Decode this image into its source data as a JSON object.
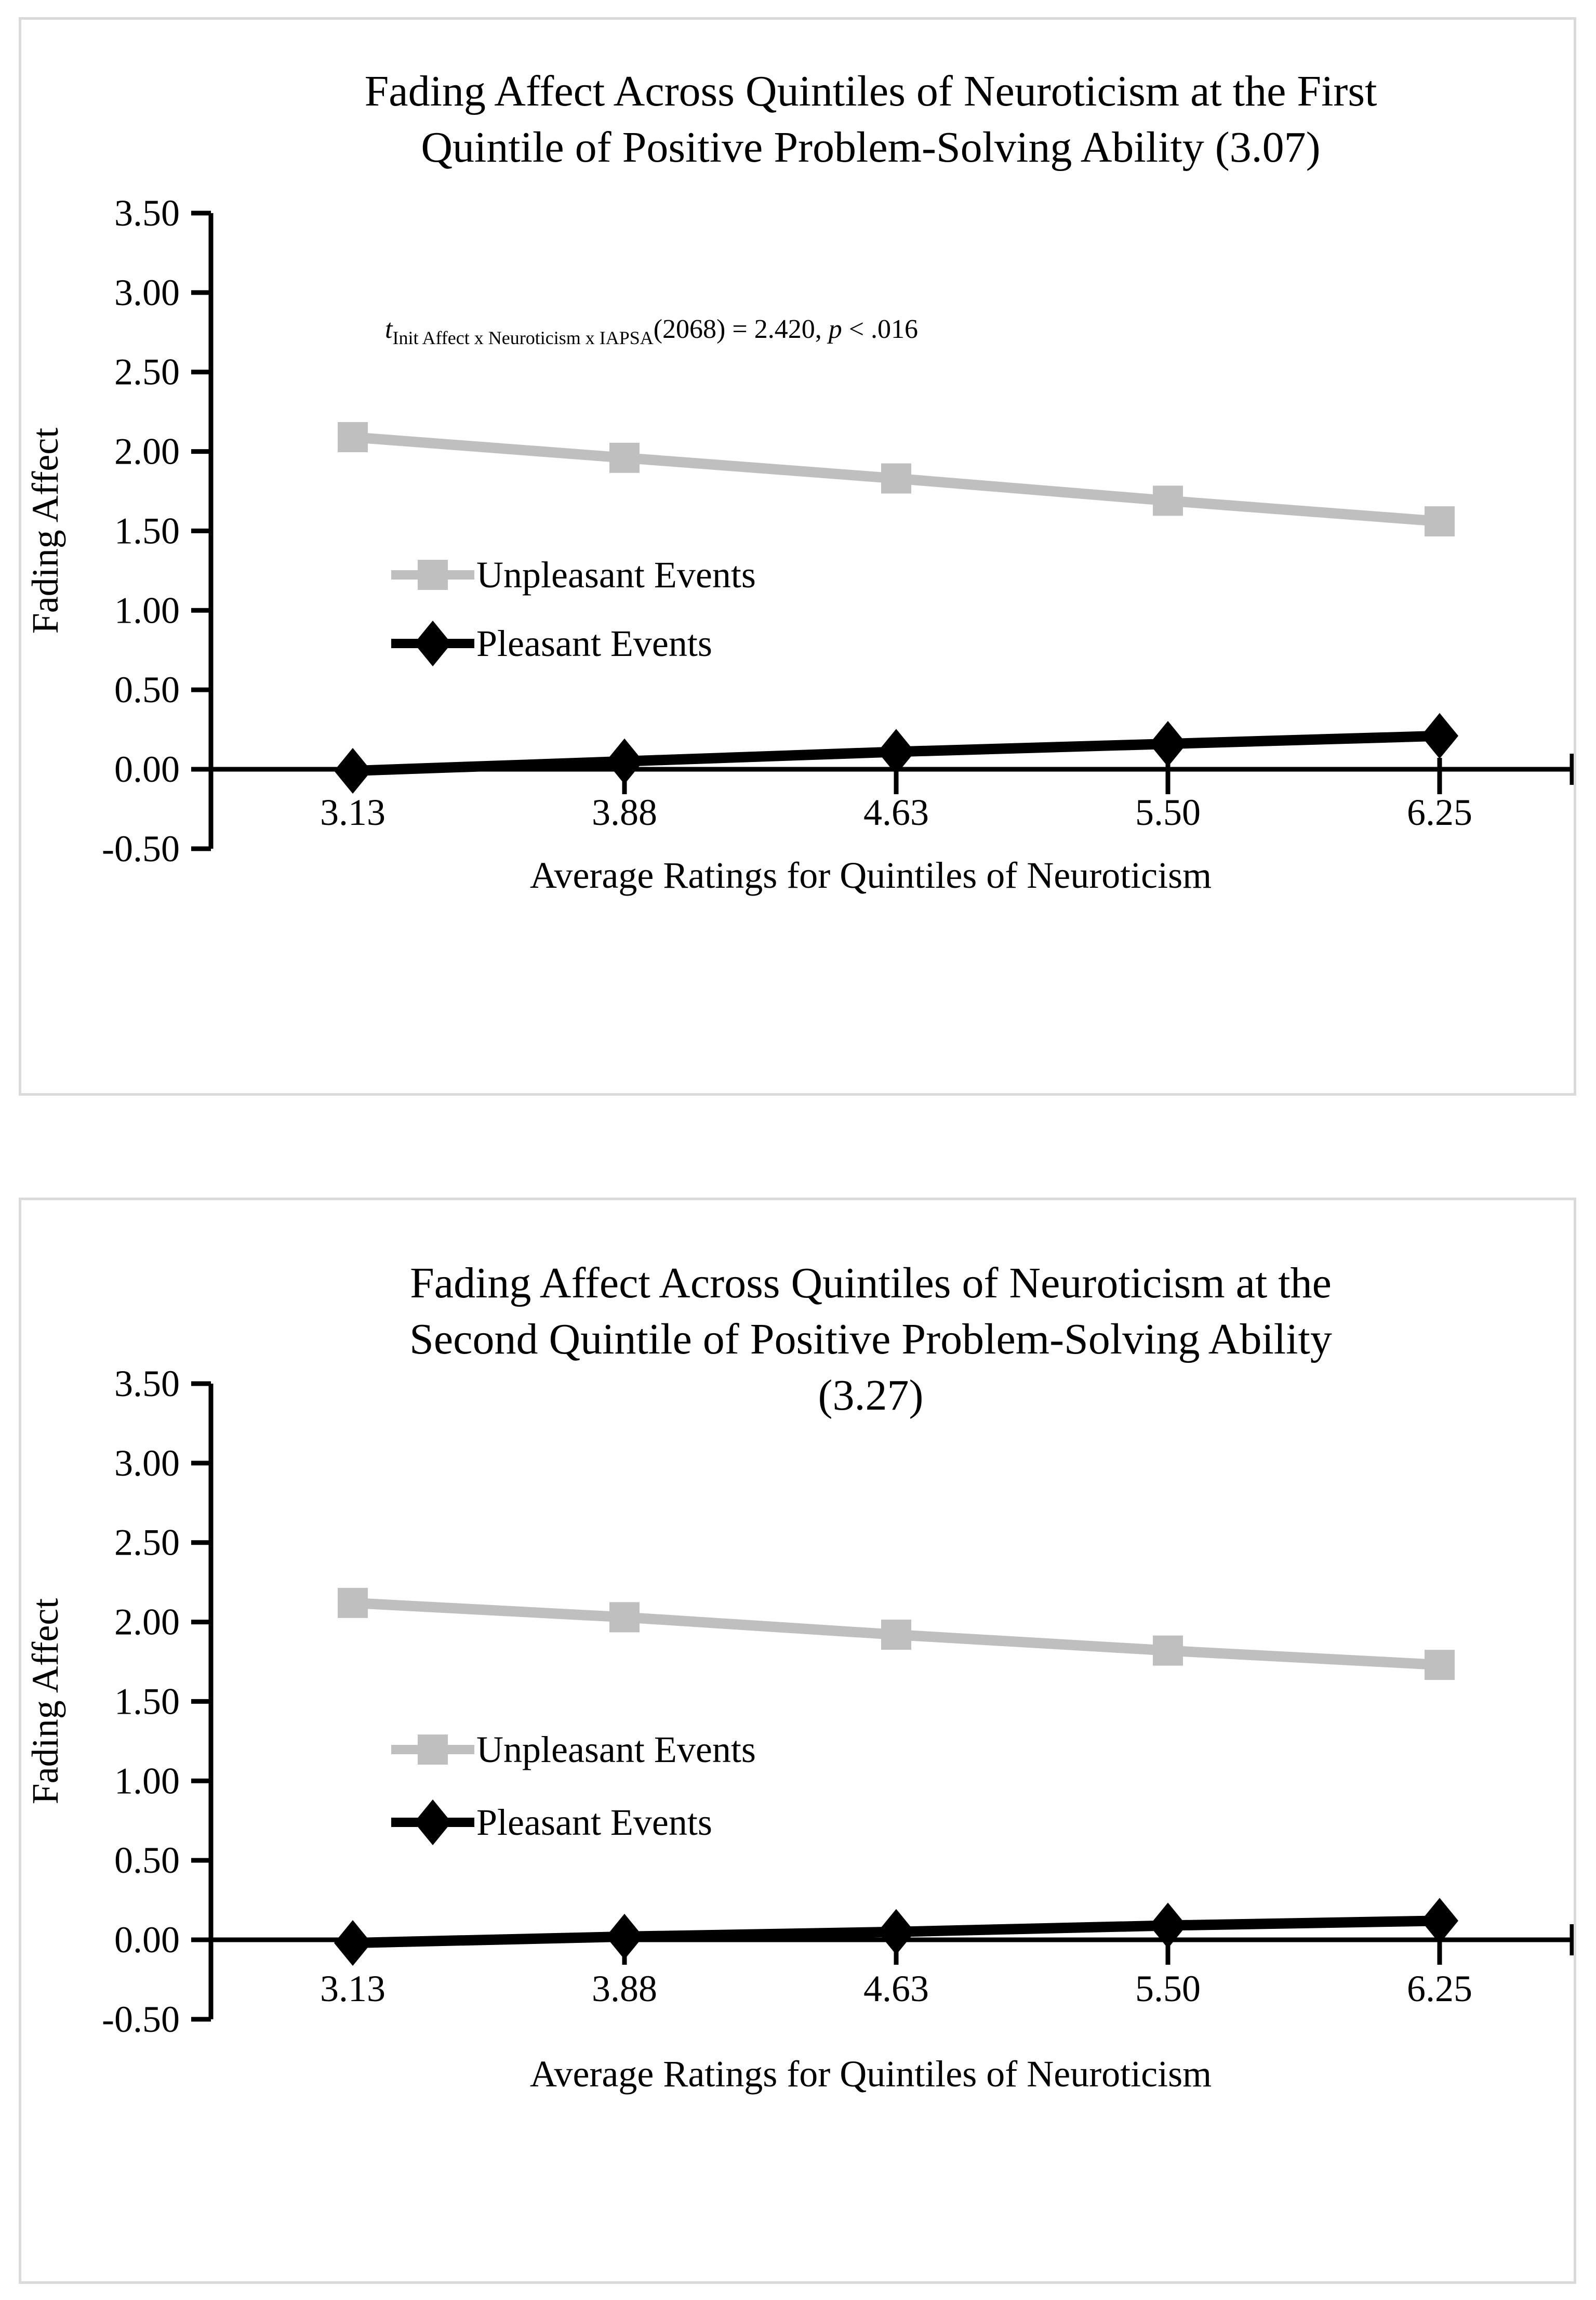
{
  "colors": {
    "unpleasant_series": "#bfbfbf",
    "pleasant_series": "#000000",
    "axis": "#000000",
    "panel_border": "#dadada",
    "background": "#ffffff"
  },
  "chart_data": [
    {
      "type": "line",
      "title_lines": [
        "Fading Affect Across Quintiles of Neuroticism at the First",
        "Quintile of Positive Problem-Solving Ability (3.07)"
      ],
      "xlabel": "Average Ratings for Quintiles of Neuroticism",
      "ylabel": "Fading Affect",
      "categories": [
        "3.13",
        "3.88",
        "4.63",
        "5.50",
        "6.25"
      ],
      "y_ticks": [
        "3.50",
        "3.00",
        "2.50",
        "2.00",
        "1.50",
        "1.00",
        "0.50",
        "0.00",
        "-0.50"
      ],
      "ylim": [
        -0.5,
        3.5
      ],
      "grid": "off",
      "legend_position": "inside-left",
      "series": [
        {
          "name": "Unpleasant Events",
          "marker": "square",
          "color": "#bfbfbf",
          "values": [
            2.09,
            1.96,
            1.83,
            1.69,
            1.56
          ]
        },
        {
          "name": "Pleasant Events",
          "marker": "diamond",
          "color": "#000000",
          "values": [
            -0.01,
            0.05,
            0.11,
            0.16,
            0.21
          ]
        }
      ],
      "annotation": {
        "prefix_italic": "t",
        "subscript": "Init Affect x Neuroticism x IAPSA",
        "middle": "(2068) = 2.420, ",
        "p_italic": "p",
        "suffix": " < .016"
      }
    },
    {
      "type": "line",
      "title_lines": [
        "Fading Affect Across Quintiles of Neuroticism at the",
        "Second Quintile of Positive Problem-Solving Ability",
        "(3.27)"
      ],
      "xlabel": "Average Ratings for Quintiles of Neuroticism",
      "ylabel": "Fading Affect",
      "categories": [
        "3.13",
        "3.88",
        "4.63",
        "5.50",
        "6.25"
      ],
      "y_ticks": [
        "3.50",
        "3.00",
        "2.50",
        "2.00",
        "1.50",
        "1.00",
        "0.50",
        "0.00",
        "-0.50"
      ],
      "ylim": [
        -0.5,
        3.5
      ],
      "grid": "off",
      "legend_position": "inside-left",
      "series": [
        {
          "name": "Unpleasant Events",
          "marker": "square",
          "color": "#bfbfbf",
          "values": [
            2.12,
            2.03,
            1.92,
            1.82,
            1.73
          ]
        },
        {
          "name": "Pleasant Events",
          "marker": "diamond",
          "color": "#000000",
          "values": [
            -0.02,
            0.02,
            0.05,
            0.09,
            0.12
          ]
        }
      ]
    }
  ]
}
